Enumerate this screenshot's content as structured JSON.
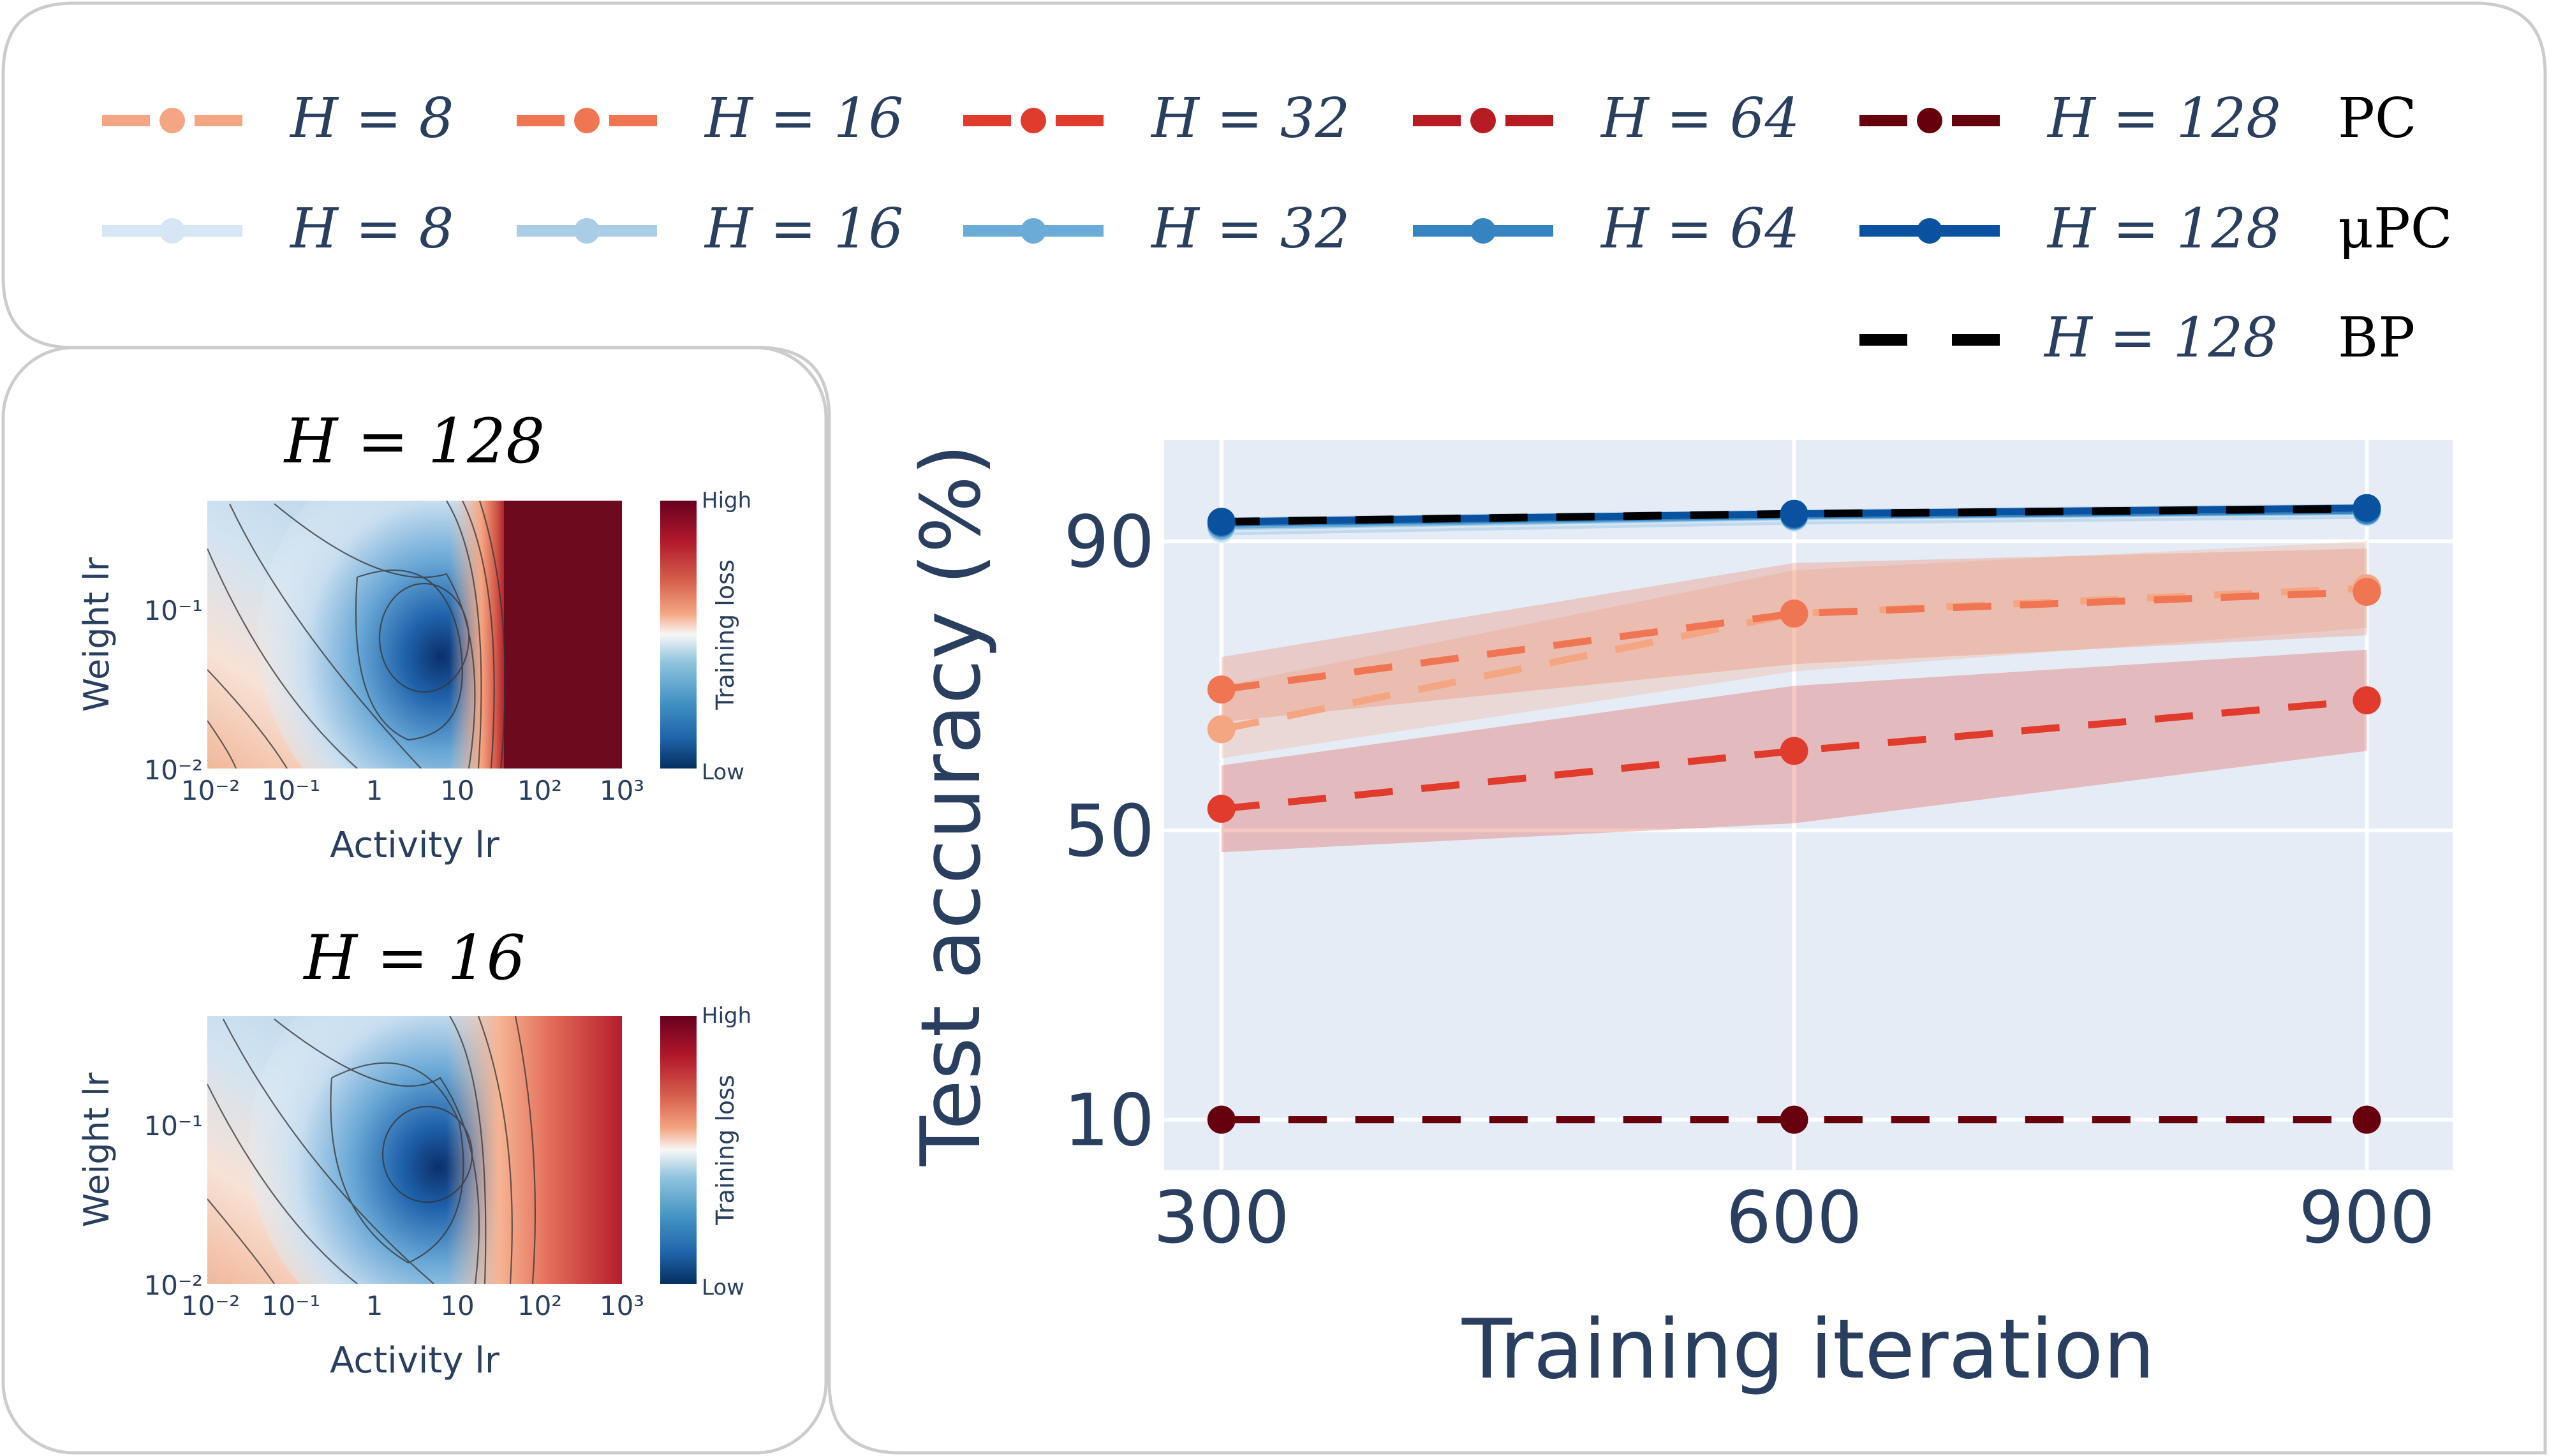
{
  "colors": {
    "pc": [
      "#f4a582",
      "#f07553",
      "#e03b2c",
      "#b71c23",
      "#67000d"
    ],
    "mupc": [
      "#d6e6f4",
      "#a8cde5",
      "#6aabd8",
      "#3584c1",
      "#0a52a0"
    ],
    "bp": "#000000",
    "panel_border": "#cccccc",
    "plot_bg": "#e5ecf6",
    "axis_text": "#2a3f5f"
  },
  "legend": {
    "pc_label": "PC",
    "mupc_label": "μPC",
    "bp_label": "BP",
    "pc_entries": [
      "H = 8",
      "H = 16",
      "H = 32",
      "H = 64",
      "H = 128"
    ],
    "mupc_entries": [
      "H = 8",
      "H = 16",
      "H = 32",
      "H = 64",
      "H = 128"
    ],
    "bp_entry": "H = 128"
  },
  "heatmaps": [
    {
      "title": "H = 128",
      "ylabel": "Weight lr",
      "xlabel": "Activity lr",
      "y_ticks": [
        "10⁻¹",
        "10⁻²"
      ],
      "x_ticks": [
        "10⁻²",
        "10⁻¹",
        "1",
        "10",
        "10²",
        "10³"
      ],
      "colorbar_label": "Training loss",
      "colorbar_high": "High",
      "colorbar_low": "Low"
    },
    {
      "title": "H = 16",
      "ylabel": "Weight lr",
      "xlabel": "Activity lr",
      "y_ticks": [
        "10⁻¹",
        "10⁻²"
      ],
      "x_ticks": [
        "10⁻²",
        "10⁻¹",
        "1",
        "10",
        "10²",
        "10³"
      ],
      "colorbar_label": "Training loss",
      "colorbar_high": "High",
      "colorbar_low": "Low"
    }
  ],
  "chart_data": {
    "type": "line",
    "title": "",
    "xlabel": "Training iteration",
    "ylabel": "Test accuracy (%)",
    "x": [
      300,
      600,
      900
    ],
    "xlim": [
      270,
      945
    ],
    "ylim": [
      3,
      104
    ],
    "x_ticks": [
      300,
      600,
      900
    ],
    "y_ticks": [
      10,
      50,
      90
    ],
    "grid": true,
    "series": [
      {
        "name": "PC H = 8",
        "values": [
          64,
          80,
          83.5
        ],
        "band": [
          [
            60,
            70
          ],
          [
            72,
            86
          ],
          [
            78,
            90
          ]
        ],
        "dashed": true
      },
      {
        "name": "PC H = 16",
        "values": [
          69.5,
          80,
          83
        ],
        "band": [
          [
            65,
            74
          ],
          [
            73,
            87
          ],
          [
            77,
            89
          ]
        ],
        "dashed": true
      },
      {
        "name": "PC H = 32",
        "values": [
          53,
          61,
          68
        ],
        "band": [
          [
            47,
            59
          ],
          [
            51,
            70
          ],
          [
            61,
            75
          ]
        ],
        "dashed": true
      },
      {
        "name": "PC H = 64",
        "values": [
          10,
          10,
          10
        ],
        "dashed": true
      },
      {
        "name": "PC H = 128",
        "values": [
          10,
          10,
          10
        ],
        "dashed": true
      },
      {
        "name": "μPC H = 8",
        "values": [
          91.7,
          93.2,
          94
        ],
        "dashed": false
      },
      {
        "name": "μPC H = 16",
        "values": [
          92,
          93.4,
          94.1
        ],
        "dashed": false
      },
      {
        "name": "μPC H = 32",
        "values": [
          92.2,
          93.5,
          94.2
        ],
        "dashed": false
      },
      {
        "name": "μPC H = 64",
        "values": [
          92.5,
          93.6,
          94.3
        ],
        "dashed": false
      },
      {
        "name": "μPC H = 128",
        "values": [
          92.7,
          93.8,
          94.6
        ],
        "dashed": false
      },
      {
        "name": "BP H = 128",
        "values": [
          92.7,
          93.8,
          94.5
        ],
        "dashed": true
      }
    ]
  }
}
